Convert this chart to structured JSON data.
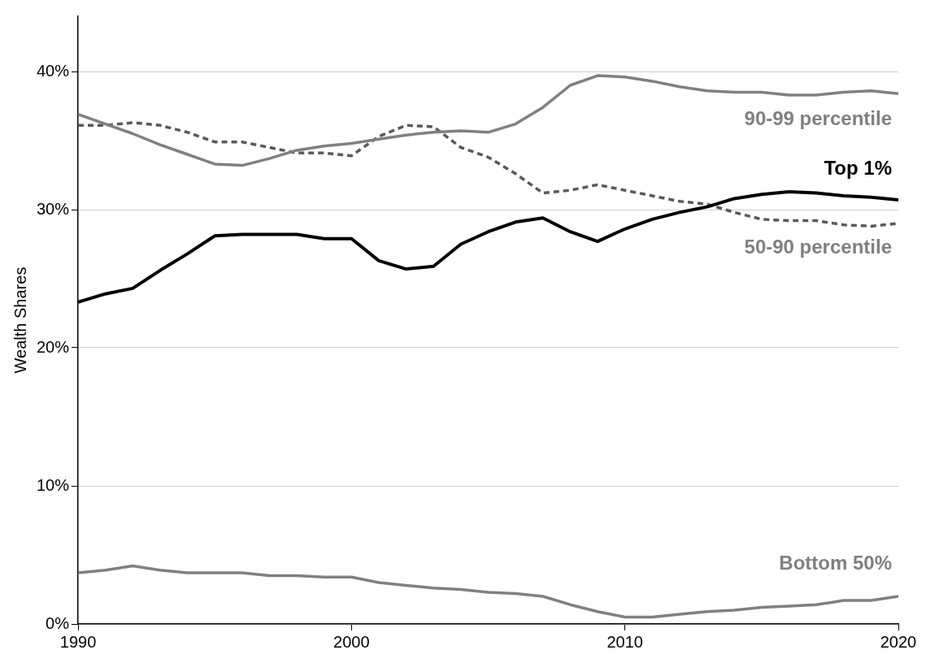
{
  "chart_data": {
    "type": "line",
    "ylabel": "Wealth Shares",
    "x": [
      1990,
      1991,
      1992,
      1993,
      1994,
      1995,
      1996,
      1997,
      1998,
      1999,
      2000,
      2001,
      2002,
      2003,
      2004,
      2005,
      2006,
      2007,
      2008,
      2009,
      2010,
      2011,
      2012,
      2013,
      2014,
      2015,
      2016,
      2017,
      2018,
      2019,
      2020
    ],
    "xlim": [
      1990,
      2020
    ],
    "xticks": [
      1990,
      2000,
      2010,
      2020
    ],
    "ylim": [
      0,
      44
    ],
    "yticks": [
      {
        "value": 0,
        "label": "0%"
      },
      {
        "value": 10,
        "label": "10%"
      },
      {
        "value": 20,
        "label": "20%"
      },
      {
        "value": 30,
        "label": "30%"
      },
      {
        "value": 40,
        "label": "40%"
      }
    ],
    "grid": "y",
    "marker": "none",
    "series": [
      {
        "name": "90-99 percentile",
        "color": "#808080",
        "values": [
          36.9,
          36.2,
          35.5,
          34.7,
          34.0,
          33.3,
          33.2,
          33.7,
          34.3,
          34.6,
          34.8,
          35.1,
          35.4,
          35.6,
          35.7,
          35.6,
          36.2,
          37.4,
          39.0,
          39.7,
          39.6,
          39.3,
          38.9,
          38.6,
          38.5,
          38.5,
          38.3,
          38.3,
          38.5,
          38.6,
          38.4
        ]
      },
      {
        "name": "Top 1%",
        "color": "#000000",
        "values": [
          23.3,
          23.9,
          24.3,
          25.6,
          26.8,
          28.1,
          28.2,
          28.2,
          28.2,
          27.9,
          27.9,
          26.3,
          25.7,
          25.9,
          27.5,
          28.4,
          29.1,
          29.4,
          28.4,
          27.7,
          28.6,
          29.3,
          29.8,
          30.2,
          30.8,
          31.1,
          31.3,
          31.2,
          31.0,
          30.9,
          30.7
        ]
      },
      {
        "name": "50-90 percentile",
        "color": "#595959",
        "line_style": "dashed",
        "values": [
          36.1,
          36.1,
          36.3,
          36.1,
          35.6,
          34.9,
          34.9,
          34.5,
          34.1,
          34.1,
          33.9,
          35.3,
          36.1,
          36.0,
          34.5,
          33.8,
          32.6,
          31.2,
          31.4,
          31.8,
          31.4,
          31.0,
          30.6,
          30.4,
          29.8,
          29.3,
          29.2,
          29.2,
          28.9,
          28.8,
          29.0
        ]
      },
      {
        "name": "Bottom 50%",
        "color": "#808080",
        "values": [
          3.7,
          3.9,
          4.2,
          3.9,
          3.7,
          3.7,
          3.7,
          3.5,
          3.5,
          3.4,
          3.4,
          3.0,
          2.8,
          2.6,
          2.5,
          2.3,
          2.2,
          2.0,
          1.4,
          0.9,
          0.5,
          0.5,
          0.7,
          0.9,
          1.0,
          1.2,
          1.3,
          1.4,
          1.7,
          1.7,
          2.0
        ]
      }
    ]
  }
}
